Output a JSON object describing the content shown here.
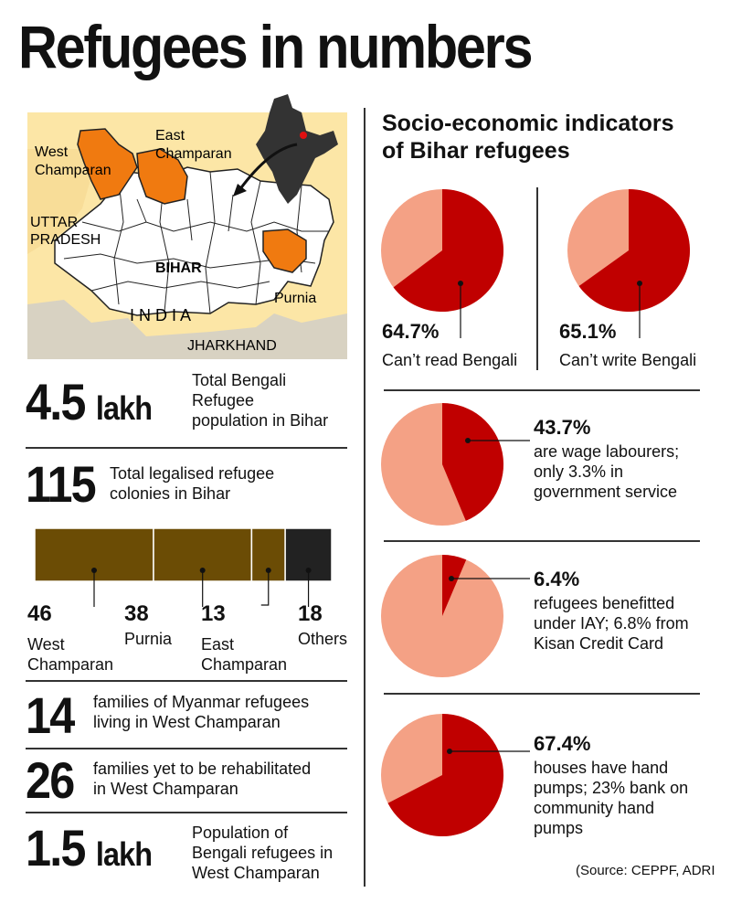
{
  "title": "Refugees in numbers",
  "map": {
    "labels": {
      "west_champaran": [
        "West",
        "Champaran"
      ],
      "east_champaran": [
        "East",
        "Champaran"
      ],
      "uttar_pradesh": [
        "UTTAR",
        "PRADESH"
      ],
      "bihar": "BIHAR",
      "purnia": "Purnia",
      "india": "I N D I A",
      "jharkhand": "JHARKHAND"
    },
    "colors": {
      "highlight": "#f07a10",
      "background": "#fce6a6",
      "state": "#ffffff",
      "india": "#333333"
    }
  },
  "stats": {
    "total_population": {
      "value": "4.5",
      "unit": "lakh",
      "desc": [
        "Total Bengali",
        "Refugee",
        "population in Bihar"
      ]
    },
    "colonies": {
      "value": "115",
      "desc": [
        "Total legalised refugee",
        "colonies in Bihar"
      ]
    },
    "myanmar": {
      "value": "14",
      "desc": [
        "families of Myanmar refugees",
        "living in West Champaran"
      ]
    },
    "not_rehabilitated": {
      "value": "26",
      "desc": [
        "families yet to be rehabilitated",
        "in West Champaran"
      ]
    },
    "west_champaran_pop": {
      "value": "1.5",
      "unit": "lakh",
      "desc": [
        "Population of",
        "Bengali refugees in",
        "West Champaran"
      ]
    }
  },
  "chart_data": [
    {
      "type": "bar",
      "orientation": "horizontal-stacked",
      "categories": [
        "West Champaran",
        "Purnia",
        "East Champaran",
        "Others"
      ],
      "values": [
        46,
        38,
        13,
        18
      ],
      "labels": [
        "46",
        "38",
        "13",
        "18"
      ],
      "label_text": [
        [
          "West",
          "Champaran"
        ],
        [
          "Purnia"
        ],
        [
          "East",
          "Champaran"
        ],
        [
          "Others"
        ]
      ],
      "colors": [
        "#6b4c05",
        "#6b4c05",
        "#6b4c05",
        "#222222"
      ]
    },
    {
      "type": "pie",
      "title": "Socio-economic indicators of Bihar refugees",
      "title_lines": [
        "Socio-economic indicators",
        "of Bihar refugees"
      ],
      "colors": {
        "highlight": "#c00000",
        "rest": "#f4a185"
      },
      "pies": [
        {
          "value": 64.7,
          "label": "64.7%",
          "text": [
            "Can’t read Bengali"
          ]
        },
        {
          "value": 65.1,
          "label": "65.1%",
          "text": [
            "Can’t write Bengali"
          ]
        },
        {
          "value": 43.7,
          "label": "43.7%",
          "text": [
            "are wage labourers;",
            "only 3.3% in",
            "government service"
          ]
        },
        {
          "value": 6.4,
          "label": "6.4%",
          "text": [
            "refugees benefitted",
            "under IAY; 6.8% from",
            "Kisan Credit Card"
          ]
        },
        {
          "value": 67.4,
          "label": "67.4%",
          "text": [
            "houses have hand",
            "pumps; 23% bank on",
            "community hand",
            "pumps"
          ]
        }
      ]
    }
  ],
  "source": "(Source: CEPPF, ADRI"
}
